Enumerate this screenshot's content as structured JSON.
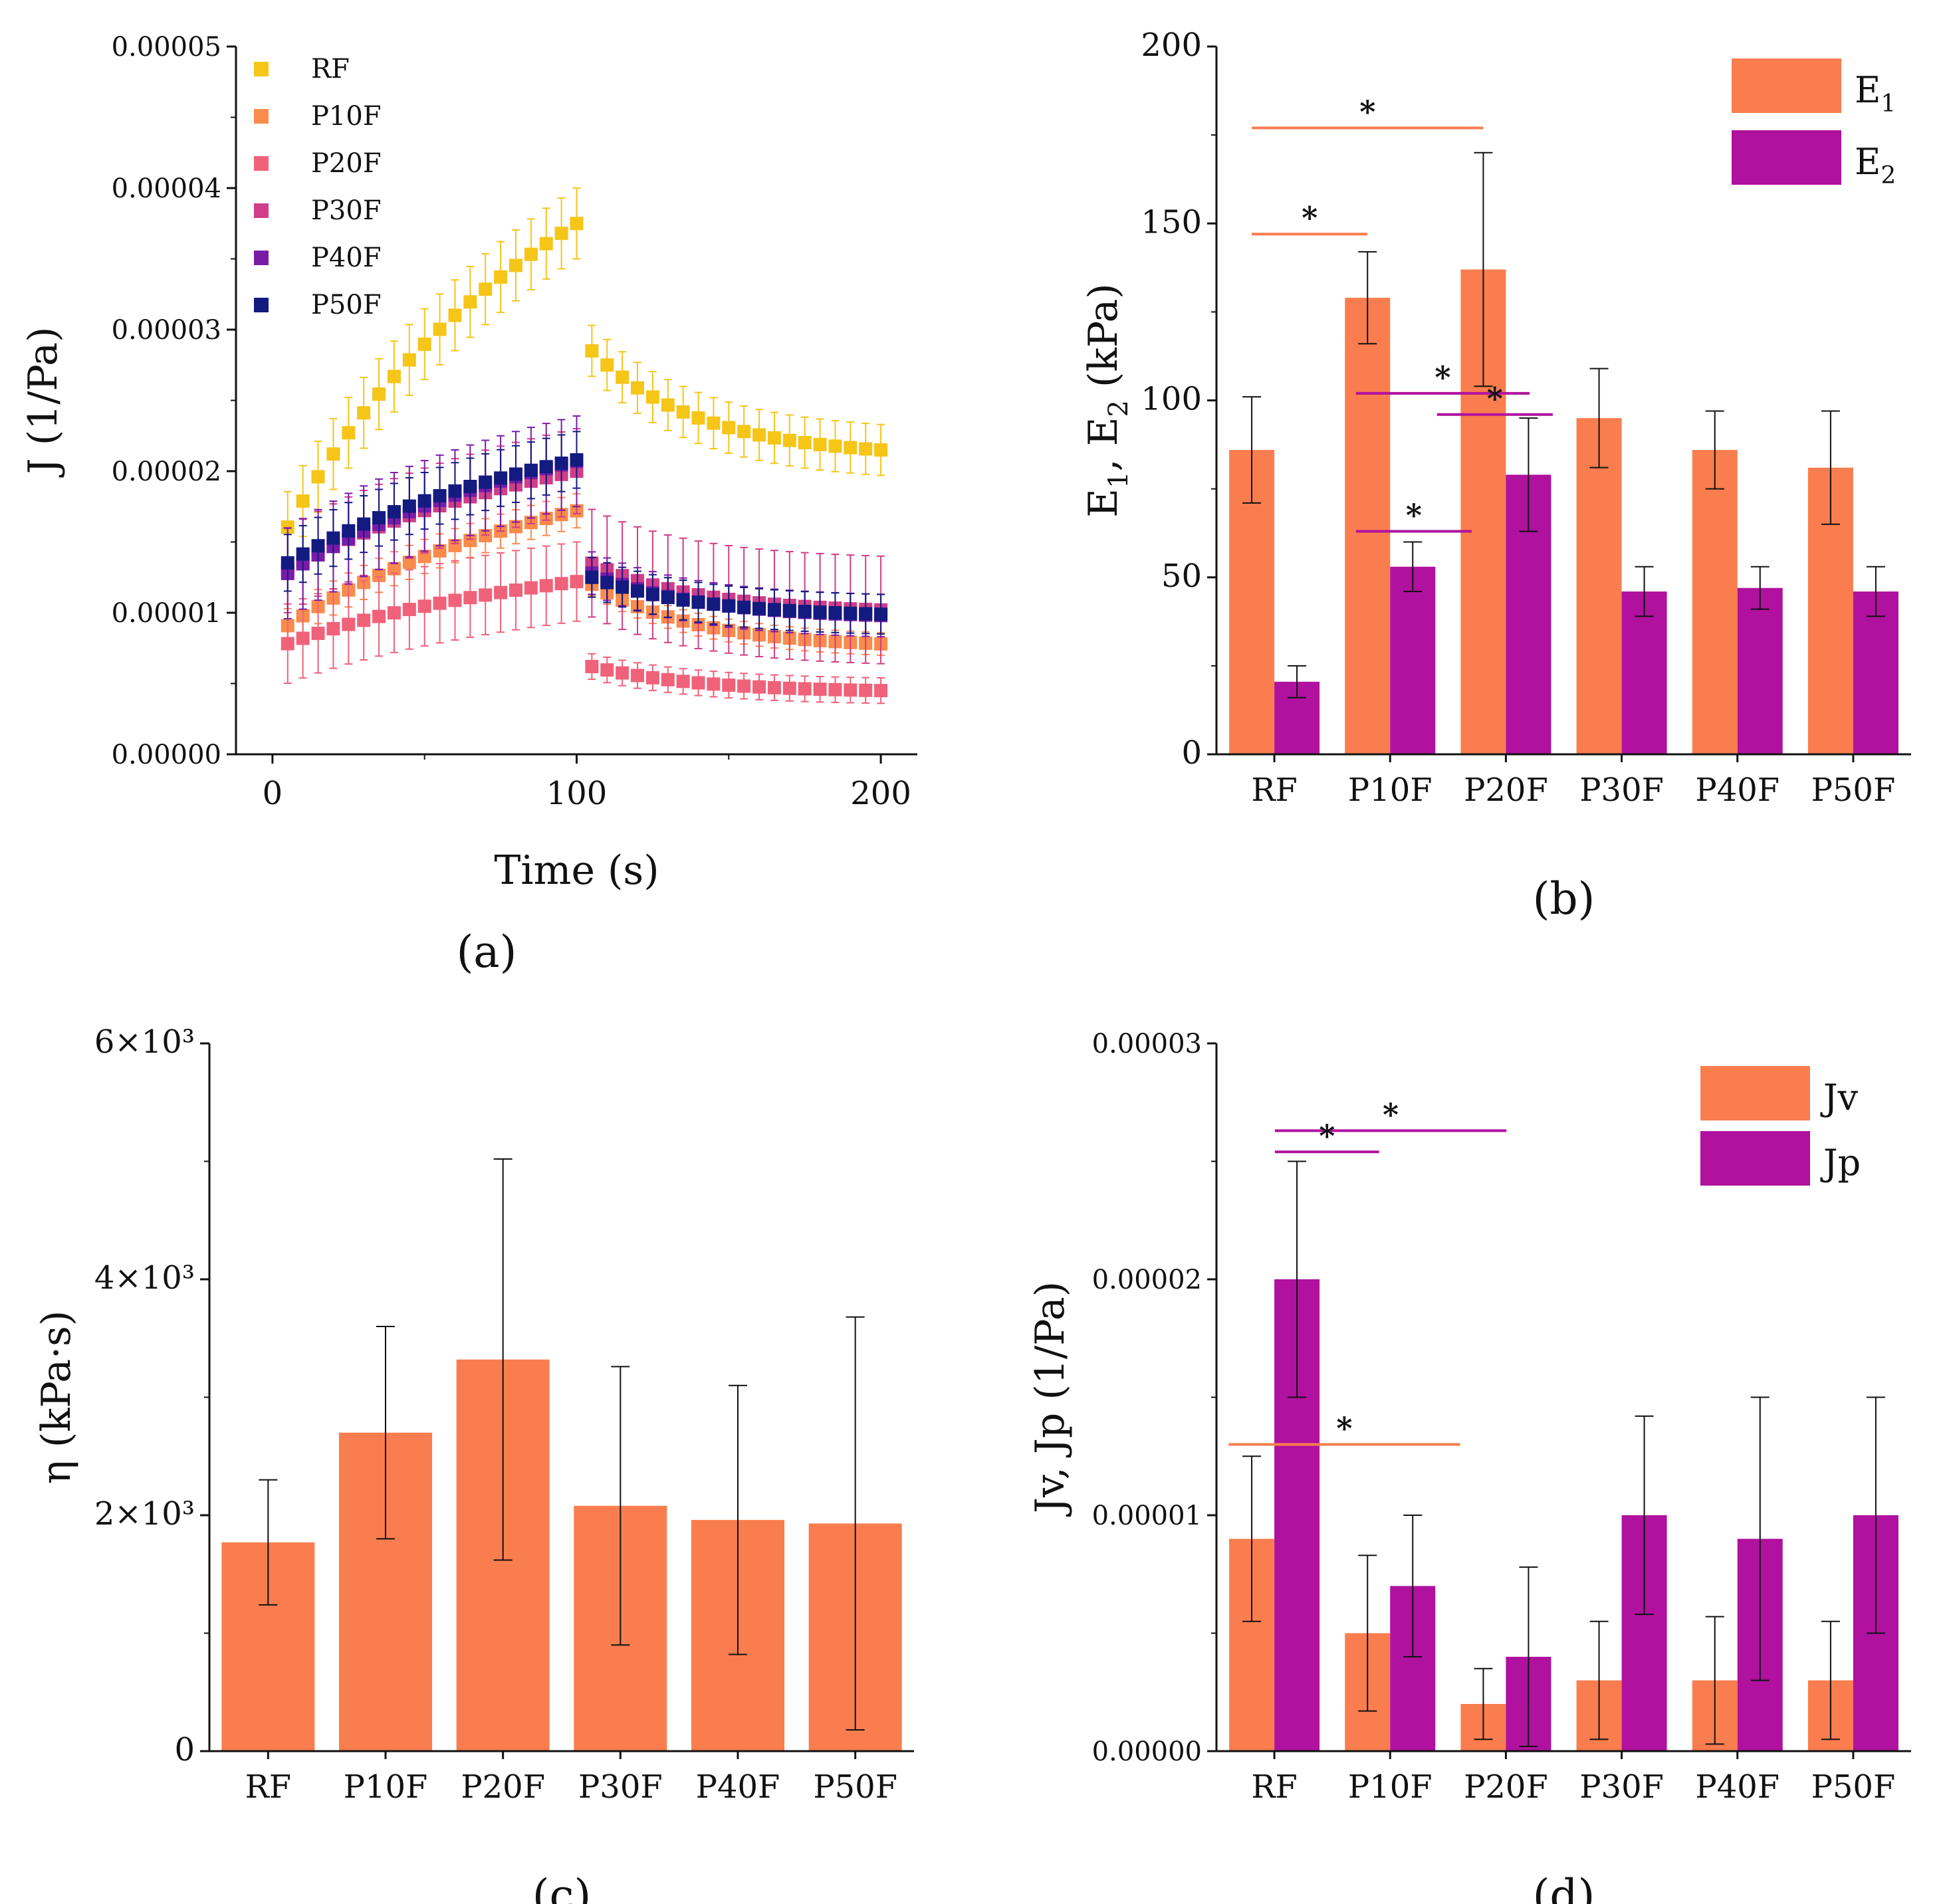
{
  "colors": {
    "RF": "#F5C518",
    "P10F": "#F98B4C",
    "P20F": "#F0627A",
    "P30F": "#D13D86",
    "P40F": "#7A1BA8",
    "P50F": "#131A80",
    "orange": "#F97D4E",
    "purple": "#B0119E",
    "axis": "#111111"
  },
  "chart_data": [
    {
      "id": "a",
      "type": "scatter",
      "panel_label": "(a)",
      "xlabel": "Time (s)",
      "ylabel": "J (1/Pa)",
      "xlim": [
        -12,
        212
      ],
      "ylim": [
        0,
        5e-05
      ],
      "x_ticks": [
        0,
        100,
        200
      ],
      "x_tick_labels": [
        "0",
        "100",
        "200"
      ],
      "y_ticks": [
        0,
        1e-05,
        2e-05,
        3e-05,
        4e-05,
        5e-05
      ],
      "y_tick_labels": [
        "0.00000",
        "0.00001",
        "0.00002",
        "0.00003",
        "0.00004",
        "0.00005"
      ],
      "legend_position": "top-left",
      "series": [
        {
          "name": "RF",
          "color_key": "RF",
          "creep_start": 1.45e-05,
          "creep_end": 3.75e-05,
          "creep_err": 2.5e-06,
          "recovery_start": 2.85e-05,
          "recovery_end": 2.15e-05,
          "recovery_err": 1.8e-06
        },
        {
          "name": "P10F",
          "color_key": "P10F",
          "creep_start": 8.5e-06,
          "creep_end": 1.72e-05,
          "creep_err": 1.2e-06,
          "recovery_start": 1.2e-05,
          "recovery_end": 7.8e-06,
          "recovery_err": 8e-07
        },
        {
          "name": "P20F",
          "color_key": "P20F",
          "creep_start": 7.5e-06,
          "creep_end": 1.22e-05,
          "creep_err": 2.8e-06,
          "recovery_start": 6.2e-06,
          "recovery_end": 4.5e-06,
          "recovery_err": 9e-07
        },
        {
          "name": "P30F",
          "color_key": "P30F",
          "creep_start": 1.25e-05,
          "creep_end": 2e-05,
          "creep_err": 3e-06,
          "recovery_start": 1.35e-05,
          "recovery_end": 1.02e-05,
          "recovery_err": 3.8e-06
        },
        {
          "name": "P40F",
          "color_key": "P40F",
          "creep_start": 1.22e-05,
          "creep_end": 2.07e-05,
          "creep_err": 3.2e-06,
          "recovery_start": 1.28e-05,
          "recovery_end": 9.8e-06,
          "recovery_err": 1.5e-06
        },
        {
          "name": "P50F",
          "color_key": "P50F",
          "creep_start": 1.3e-05,
          "creep_end": 2.08e-05,
          "creep_err": 2e-06,
          "recovery_start": 1.25e-05,
          "recovery_end": 9.9e-06,
          "recovery_err": 1.4e-06
        }
      ]
    },
    {
      "id": "b",
      "type": "bar",
      "panel_label": "(b)",
      "xlabel": "",
      "ylabel": "E1, E2 (kPa)",
      "ylim": [
        0,
        200
      ],
      "y_ticks": [
        0,
        50,
        100,
        150,
        200
      ],
      "y_tick_labels": [
        "0",
        "50",
        "100",
        "150",
        "200"
      ],
      "categories": [
        "RF",
        "P10F",
        "P20F",
        "P30F",
        "P40F",
        "P50F"
      ],
      "legend_position": "top-right",
      "series": [
        {
          "name": "E1",
          "label_main": "E",
          "label_sub": "1",
          "color_key": "orange",
          "values": [
            86,
            129,
            137,
            95,
            86,
            81
          ],
          "errors": [
            15,
            13,
            33,
            14,
            11,
            16
          ]
        },
        {
          "name": "E2",
          "label_main": "E",
          "label_sub": "2",
          "color_key": "purple",
          "values": [
            20.5,
            53,
            79,
            46,
            47,
            46
          ],
          "errors": [
            4.5,
            7,
            16,
            7,
            6,
            7
          ]
        }
      ],
      "significance": [
        {
          "from": 0,
          "to": 2,
          "series": 0,
          "y": 177,
          "label": "*"
        },
        {
          "from": 0,
          "to": 1,
          "series": 0,
          "y": 147,
          "label": "*"
        },
        {
          "from": 0.9,
          "to": 2.4,
          "series": 1,
          "y": 102,
          "label": "*"
        },
        {
          "from": 1.6,
          "to": 2.6,
          "series": 1,
          "y": 96,
          "label": "*"
        },
        {
          "from": 0.9,
          "to": 1.9,
          "series": 1,
          "y": 63,
          "label": "*"
        }
      ]
    },
    {
      "id": "c",
      "type": "bar",
      "panel_label": "(c)",
      "xlabel": "",
      "ylabel": "η (kPa·s)",
      "ylim": [
        0,
        6000
      ],
      "y_ticks": [
        0,
        2000,
        4000,
        6000
      ],
      "y_tick_labels": [
        "0",
        "2×10³",
        "4×10³",
        "6×10³"
      ],
      "categories": [
        "RF",
        "P10F",
        "P20F",
        "P30F",
        "P40F",
        "P50F"
      ],
      "series": [
        {
          "name": "η",
          "color_key": "orange",
          "values": [
            1770,
            2700,
            3320,
            2080,
            1960,
            1930
          ],
          "errors": [
            530,
            900,
            1700,
            1180,
            1140,
            1750
          ]
        }
      ]
    },
    {
      "id": "d",
      "type": "bar",
      "panel_label": "(d)",
      "xlabel": "",
      "ylabel": "Jv, Jp (1/Pa)",
      "ylim": [
        0,
        3e-05
      ],
      "y_ticks": [
        0,
        1e-05,
        2e-05,
        3e-05
      ],
      "y_tick_labels": [
        "0.00000",
        "0.00001",
        "0.00002",
        "0.00003"
      ],
      "categories": [
        "RF",
        "P10F",
        "P20F",
        "P30F",
        "P40F",
        "P50F"
      ],
      "legend_position": "top-right",
      "series": [
        {
          "name": "Jv",
          "label_main": "Jv",
          "label_sub": "",
          "color_key": "orange",
          "values": [
            9e-06,
            5e-06,
            2e-06,
            3e-06,
            3e-06,
            3e-06
          ],
          "errors": [
            3.5e-06,
            3.3e-06,
            1.5e-06,
            2.5e-06,
            2.7e-06,
            2.5e-06
          ]
        },
        {
          "name": "Jp",
          "label_main": "Jp",
          "label_sub": "",
          "color_key": "purple",
          "values": [
            2e-05,
            7e-06,
            4e-06,
            1e-05,
            9e-06,
            1e-05
          ],
          "errors": [
            5e-06,
            3e-06,
            3.8e-06,
            4.2e-06,
            6e-06,
            5e-06
          ]
        }
      ],
      "significance": [
        {
          "from": 0.2,
          "to": 2.2,
          "series": 1,
          "y": 2.63e-05,
          "label": "*"
        },
        {
          "from": 0.2,
          "to": 1.1,
          "series": 1,
          "y": 2.54e-05,
          "label": "*"
        },
        {
          "from": -0.2,
          "to": 1.8,
          "series": 0,
          "y": 1.3e-05,
          "label": "*"
        }
      ]
    }
  ]
}
